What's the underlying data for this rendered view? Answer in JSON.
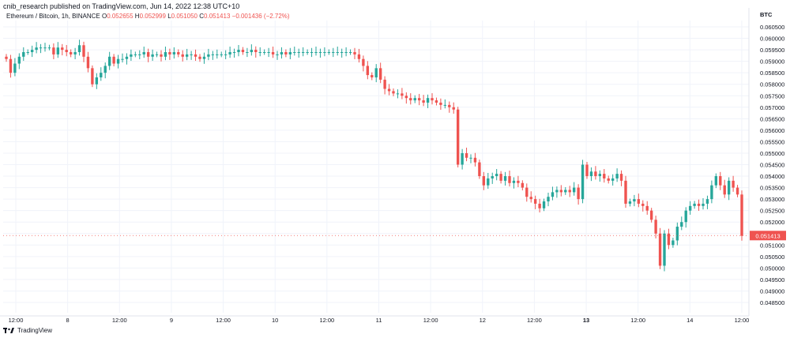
{
  "header": {
    "published": "cnib_research published on TradingView.com, Jun 14, 2022 12:38 UTC+10"
  },
  "legend": {
    "symbol": "Ethereum / Bitcoin, 1h, BINANCE",
    "o_label": "O",
    "o_value": "0.052655",
    "h_label": "H",
    "h_value": "0.052999",
    "l_label": "L",
    "l_value": "0.051050",
    "c_label": "C",
    "c_value": "0.051413",
    "change": "−0.001436 (−2.72%)"
  },
  "footer": {
    "brand": "TradingView"
  },
  "colors": {
    "up": "#26a69a",
    "down": "#ef5350",
    "grid": "#f0f3fa",
    "axis_text": "#131722"
  },
  "chart_data": {
    "type": "candlestick",
    "title": "Ethereum / Bitcoin, 1h, BINANCE",
    "currency_label": "BTC",
    "ylim": [
      0.0484,
      0.061
    ],
    "y_ticks": [
      "0.060500",
      "0.060000",
      "0.059500",
      "0.059000",
      "0.058500",
      "0.058000",
      "0.057500",
      "0.057000",
      "0.056500",
      "0.056000",
      "0.055500",
      "0.055000",
      "0.054500",
      "0.054000",
      "0.053500",
      "0.053000",
      "0.052500",
      "0.052000",
      "0.051500",
      "0.051000",
      "0.050500",
      "0.050000",
      "0.049500",
      "0.049000",
      "0.048500"
    ],
    "x_ticks": [
      {
        "label": "12:00",
        "hour": 0
      },
      {
        "label": "8",
        "hour": 12
      },
      {
        "label": "12:00",
        "hour": 24
      },
      {
        "label": "9",
        "hour": 36
      },
      {
        "label": "12:00",
        "hour": 48
      },
      {
        "label": "10",
        "hour": 60
      },
      {
        "label": "12:00",
        "hour": 72
      },
      {
        "label": "11",
        "hour": 84
      },
      {
        "label": "12:00",
        "hour": 96
      },
      {
        "label": "12",
        "hour": 108
      },
      {
        "label": "12:00",
        "hour": 120
      },
      {
        "label": "13",
        "hour": 132
      },
      {
        "label": "12:00",
        "hour": 144
      },
      {
        "label": "14",
        "hour": 156
      },
      {
        "label": "12:00",
        "hour": 168
      }
    ],
    "x_bold": [
      "13"
    ],
    "last_price": "0.051413",
    "last_price_value": 0.051413,
    "close_series": [
      0.0591,
      0.0585,
      0.0589,
      0.0592,
      0.0594,
      0.0594,
      0.0595,
      0.0596,
      0.0596,
      0.0596,
      0.0596,
      0.0593,
      0.0596,
      0.0595,
      0.0594,
      0.0593,
      0.0594,
      0.0597,
      0.0592,
      0.0587,
      0.058,
      0.0583,
      0.0585,
      0.0588,
      0.0592,
      0.0589,
      0.0591,
      0.0591,
      0.0592,
      0.0593,
      0.0593,
      0.0593,
      0.0594,
      0.0592,
      0.0593,
      0.0593,
      0.0592,
      0.0594,
      0.0593,
      0.0594,
      0.0593,
      0.0592,
      0.0593,
      0.0593,
      0.0592,
      0.0591,
      0.0592,
      0.0593,
      0.0593,
      0.0593,
      0.0593,
      0.0593,
      0.0594,
      0.0594,
      0.0595,
      0.0594,
      0.0594,
      0.0595,
      0.0594,
      0.0594,
      0.0594,
      0.0594,
      0.0593,
      0.0593,
      0.0594,
      0.0593,
      0.0594,
      0.0594,
      0.0594,
      0.0594,
      0.0594,
      0.0594,
      0.0594,
      0.0594,
      0.0594,
      0.0594,
      0.0594,
      0.0594,
      0.0594,
      0.0594,
      0.0594,
      0.0593,
      0.0591,
      0.0588,
      0.0584,
      0.0583,
      0.0587,
      0.0582,
      0.0578,
      0.0577,
      0.0576,
      0.0576,
      0.0575,
      0.0574,
      0.0573,
      0.0574,
      0.0573,
      0.0572,
      0.0574,
      0.0573,
      0.0572,
      0.0571,
      0.0571,
      0.057,
      0.0569,
      0.0545,
      0.055,
      0.0548,
      0.0548,
      0.0546,
      0.054,
      0.0536,
      0.0539,
      0.054,
      0.0541,
      0.0538,
      0.054,
      0.0537,
      0.0538,
      0.0537,
      0.0535,
      0.0531,
      0.053,
      0.0528,
      0.0526,
      0.0529,
      0.0531,
      0.0533,
      0.0534,
      0.0533,
      0.0534,
      0.0533,
      0.0535,
      0.053,
      0.0545,
      0.054,
      0.0542,
      0.054,
      0.0541,
      0.0539,
      0.0538,
      0.0539,
      0.0541,
      0.0538,
      0.0528,
      0.0529,
      0.053,
      0.0528,
      0.0527,
      0.0525,
      0.0521,
      0.0515,
      0.0501,
      0.0515,
      0.051,
      0.0512,
      0.0518,
      0.052,
      0.0525,
      0.0527,
      0.0528,
      0.0527,
      0.0528,
      0.053,
      0.0536,
      0.054,
      0.0536,
      0.0532,
      0.0538,
      0.0535,
      0.0532,
      0.0514
    ]
  }
}
